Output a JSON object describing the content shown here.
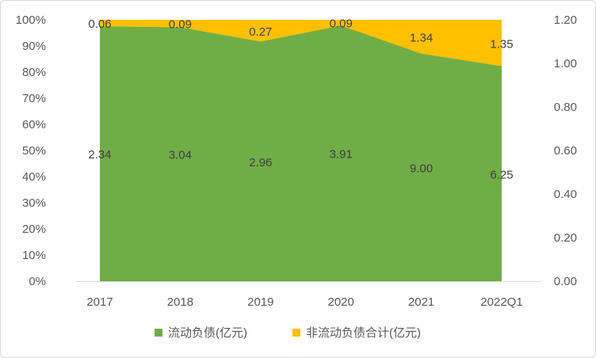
{
  "chart_data": {
    "type": "area",
    "stacking": "percent",
    "categories": [
      "2017",
      "2018",
      "2019",
      "2020",
      "2021",
      "2022Q1"
    ],
    "series": [
      {
        "name": "流动负债(亿元)",
        "values": [
          2.34,
          3.04,
          2.96,
          3.91,
          9.0,
          6.25
        ],
        "color": "#70AD47",
        "labels": [
          "2.34",
          "3.04",
          "2.96",
          "3.91",
          "9.00",
          "6.25"
        ]
      },
      {
        "name": "非流动负债合计(亿元)",
        "values": [
          0.06,
          0.09,
          0.27,
          0.09,
          1.34,
          1.35
        ],
        "color": "#FFC000",
        "labels": [
          "0.06",
          "0.09",
          "0.27",
          "0.09",
          "1.34",
          "1.35"
        ]
      }
    ],
    "y_left": {
      "range": [
        0,
        100
      ],
      "ticks": [
        "0%",
        "10%",
        "20%",
        "30%",
        "40%",
        "50%",
        "60%",
        "70%",
        "80%",
        "90%",
        "100%"
      ]
    },
    "y_right": {
      "range": [
        0,
        1.2
      ],
      "ticks": [
        "0.00",
        "0.20",
        "0.40",
        "0.60",
        "0.80",
        "1.00",
        "1.20"
      ]
    },
    "grid": false,
    "legend": "bottom"
  }
}
